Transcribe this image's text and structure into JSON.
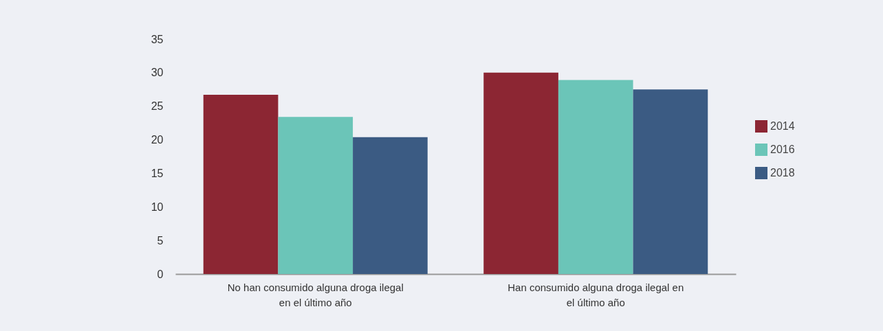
{
  "chart_data": {
    "type": "bar",
    "categories": [
      "No han consumido alguna droga ilegal en el último año",
      "Han consumido alguna droga ilegal en el último año"
    ],
    "series": [
      {
        "name": "2014",
        "color": "#8c2633",
        "values": [
          26.7,
          30.0
        ]
      },
      {
        "name": "2016",
        "color": "#6bc5b8",
        "values": [
          23.4,
          28.9
        ]
      },
      {
        "name": "2018",
        "color": "#3b5b83",
        "values": [
          20.4,
          27.5
        ]
      }
    ],
    "ylim": [
      0,
      35
    ],
    "yticks": [
      0,
      5,
      10,
      15,
      20,
      25,
      30,
      35
    ],
    "grid": false,
    "legend": "right"
  }
}
